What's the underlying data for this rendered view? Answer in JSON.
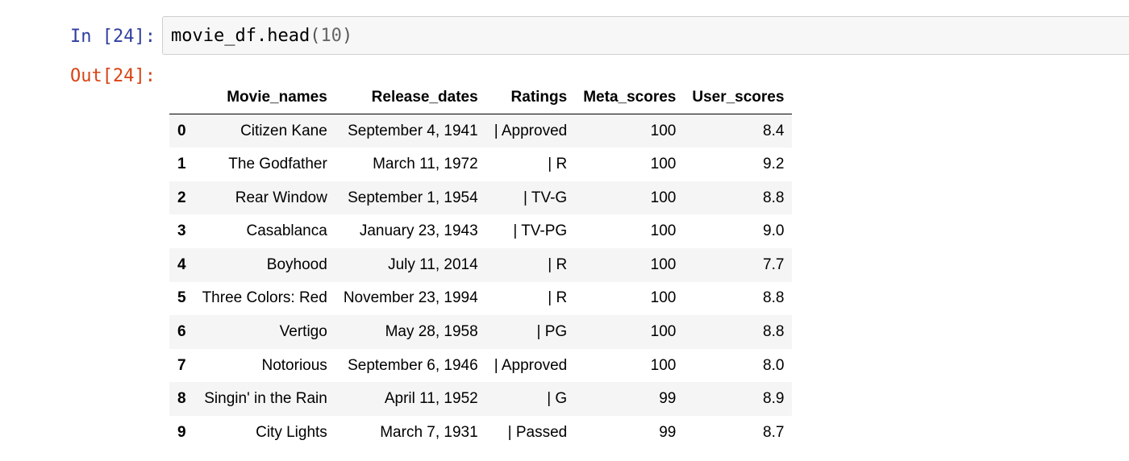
{
  "notebook": {
    "input_prompt": "In [24]:",
    "output_prompt": "Out[24]:",
    "code": {
      "name": "movie_df.head",
      "open_paren": "(",
      "arg": "10",
      "close_paren": ")"
    }
  },
  "dataframe": {
    "index_header": "",
    "columns": [
      "Movie_names",
      "Release_dates",
      "Ratings",
      "Meta_scores",
      "User_scores"
    ],
    "rows": [
      {
        "index": "0",
        "Movie_names": "Citizen Kane",
        "Release_dates": "September 4, 1941",
        "Ratings": "| Approved",
        "Meta_scores": "100",
        "User_scores": "8.4"
      },
      {
        "index": "1",
        "Movie_names": "The Godfather",
        "Release_dates": "March 11, 1972",
        "Ratings": "| R",
        "Meta_scores": "100",
        "User_scores": "9.2"
      },
      {
        "index": "2",
        "Movie_names": "Rear Window",
        "Release_dates": "September 1, 1954",
        "Ratings": "| TV-G",
        "Meta_scores": "100",
        "User_scores": "8.8"
      },
      {
        "index": "3",
        "Movie_names": "Casablanca",
        "Release_dates": "January 23, 1943",
        "Ratings": "| TV-PG",
        "Meta_scores": "100",
        "User_scores": "9.0"
      },
      {
        "index": "4",
        "Movie_names": "Boyhood",
        "Release_dates": "July 11, 2014",
        "Ratings": "| R",
        "Meta_scores": "100",
        "User_scores": "7.7"
      },
      {
        "index": "5",
        "Movie_names": "Three Colors: Red",
        "Release_dates": "November 23, 1994",
        "Ratings": "| R",
        "Meta_scores": "100",
        "User_scores": "8.8"
      },
      {
        "index": "6",
        "Movie_names": "Vertigo",
        "Release_dates": "May 28, 1958",
        "Ratings": "| PG",
        "Meta_scores": "100",
        "User_scores": "8.8"
      },
      {
        "index": "7",
        "Movie_names": "Notorious",
        "Release_dates": "September 6, 1946",
        "Ratings": "| Approved",
        "Meta_scores": "100",
        "User_scores": "8.0"
      },
      {
        "index": "8",
        "Movie_names": "Singin' in the Rain",
        "Release_dates": "April 11, 1952",
        "Ratings": "| G",
        "Meta_scores": "99",
        "User_scores": "8.9"
      },
      {
        "index": "9",
        "Movie_names": "City Lights",
        "Release_dates": "March 7, 1931",
        "Ratings": "| Passed",
        "Meta_scores": "99",
        "User_scores": "8.7"
      }
    ]
  },
  "colors": {
    "input_prompt": "#303f9f",
    "output_prompt": "#d84315",
    "input_background": "#f7f7f7",
    "input_border": "#cfcfcf",
    "striped_row": "#f5f5f5"
  }
}
